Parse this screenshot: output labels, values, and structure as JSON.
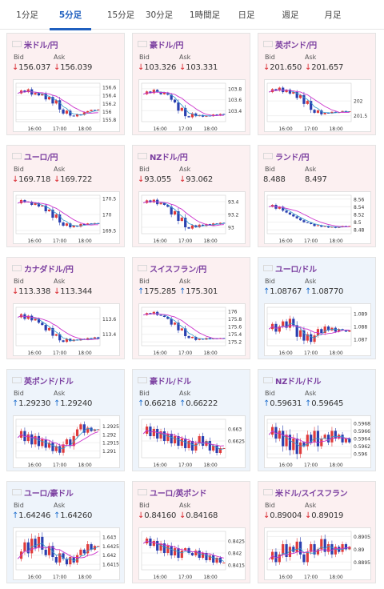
{
  "tabs": [
    {
      "label": "1分足",
      "active": false
    },
    {
      "label": "5分足",
      "active": true
    },
    {
      "label": "15分足",
      "active": false
    },
    {
      "label": "30分足",
      "active": false
    },
    {
      "label": "1時間足",
      "active": false
    },
    {
      "label": "日足",
      "active": false
    },
    {
      "label": "週足",
      "active": false
    },
    {
      "label": "月足",
      "active": false
    }
  ],
  "labels": {
    "bid": "Bid",
    "ask": "Ask"
  },
  "colors": {
    "accent": "#1f5fbf",
    "pair_name": "#7b3fa0",
    "down": "#d8232a",
    "up": "#1f6fce",
    "down_bg": "#fcf0f1",
    "up_bg": "#eef4fb",
    "bull_candle": "#e03b3b",
    "bear_candle": "#2a3fb0",
    "ma_line": "#cc33cc",
    "ma_line2": "#3399cc"
  },
  "pairs": [
    {
      "name": "米ドル/円",
      "flag": "us-flag",
      "dir": "down",
      "bid": "156.037",
      "ask": "156.039",
      "chart_data": {
        "type": "candlestick",
        "x_ticks": [
          "16:00",
          "17:00",
          "18:00"
        ],
        "y_ticks": [
          "156.6",
          "156.4",
          "156.2",
          "156",
          "155.8"
        ],
        "ylim": [
          155.75,
          156.7
        ],
        "path": [
          156.45,
          156.52,
          156.48,
          156.55,
          156.42,
          156.46,
          156.4,
          156.44,
          156.3,
          156.36,
          156.2,
          156.28,
          156.05,
          155.95,
          156.02,
          155.9,
          155.88,
          155.93,
          155.92,
          155.98,
          156.01,
          156.04,
          156.03,
          156.05
        ]
      }
    },
    {
      "name": "豪ドル/円",
      "flag": "au-flag",
      "dir": "down",
      "bid": "103.326",
      "ask": "103.331",
      "chart_data": {
        "type": "candlestick",
        "x_ticks": [
          "16:00",
          "17:00",
          "18:00"
        ],
        "y_ticks": [
          "103.8",
          "103.6",
          "103.4"
        ],
        "ylim": [
          103.2,
          103.9
        ],
        "path": [
          103.7,
          103.75,
          103.72,
          103.78,
          103.74,
          103.7,
          103.73,
          103.69,
          103.6,
          103.55,
          103.4,
          103.45,
          103.3,
          103.28,
          103.35,
          103.3,
          103.32,
          103.29,
          103.31,
          103.3,
          103.33,
          103.31,
          103.34,
          103.33
        ]
      }
    },
    {
      "name": "英ポンド/円",
      "flag": "gb-flag",
      "dir": "down",
      "bid": "201.650",
      "ask": "201.657",
      "chart_data": {
        "type": "candlestick",
        "x_ticks": [
          "16:00",
          "17:00",
          "18:00"
        ],
        "y_ticks": [
          "202",
          "201.5"
        ],
        "ylim": [
          201.3,
          202.6
        ],
        "path": [
          202.3,
          202.4,
          202.35,
          202.45,
          202.3,
          202.38,
          202.25,
          202.3,
          202.1,
          202.2,
          201.9,
          202.0,
          201.7,
          201.6,
          201.68,
          201.55,
          201.6,
          201.58,
          201.63,
          201.6,
          201.62,
          201.66,
          201.64,
          201.65
        ]
      }
    },
    {
      "name": "ユーロ/円",
      "flag": "eu-flag",
      "dir": "down",
      "bid": "169.718",
      "ask": "169.722",
      "chart_data": {
        "type": "candlestick",
        "x_ticks": [
          "16:00",
          "17:00",
          "18:00"
        ],
        "y_ticks": [
          "170.5",
          "170",
          "169.5"
        ],
        "ylim": [
          169.4,
          170.6
        ],
        "path": [
          170.35,
          170.45,
          170.38,
          170.4,
          170.3,
          170.35,
          170.25,
          170.28,
          170.1,
          170.15,
          169.9,
          170.0,
          169.75,
          169.65,
          169.72,
          169.6,
          169.65,
          169.62,
          169.7,
          169.68,
          169.72,
          169.7,
          169.73,
          169.72
        ]
      }
    },
    {
      "name": "NZドル/円",
      "flag": "nz-flag",
      "dir": "down",
      "bid": "93.055",
      "ask": "93.062",
      "chart_data": {
        "type": "candlestick",
        "x_ticks": [
          "16:00",
          "17:00",
          "18:00"
        ],
        "y_ticks": [
          "93.4",
          "93.2",
          "93"
        ],
        "ylim": [
          92.9,
          93.5
        ],
        "path": [
          93.38,
          93.42,
          93.39,
          93.43,
          93.36,
          93.38,
          93.35,
          93.32,
          93.2,
          93.25,
          93.1,
          93.15,
          93.0,
          92.98,
          93.03,
          93.0,
          93.04,
          93.02,
          93.05,
          93.03,
          93.06,
          93.05,
          93.07,
          93.06
        ]
      }
    },
    {
      "name": "ランド/円",
      "flag": "za-flag",
      "dir": "none",
      "bid": "8.488",
      "ask": "8.497",
      "chart_data": {
        "type": "candlestick",
        "x_ticks": [
          "16:00",
          "17:00",
          "18:00"
        ],
        "y_ticks": [
          "8.56",
          "8.54",
          "8.52",
          "8.5",
          "8.48"
        ],
        "ylim": [
          8.47,
          8.57
        ],
        "path": [
          8.54,
          8.545,
          8.535,
          8.54,
          8.53,
          8.525,
          8.52,
          8.515,
          8.51,
          8.505,
          8.5,
          8.498,
          8.495,
          8.49,
          8.492,
          8.488,
          8.49,
          8.486,
          8.488,
          8.485,
          8.487,
          8.49,
          8.488,
          8.49
        ]
      }
    },
    {
      "name": "カナダドル/円",
      "flag": "ca-flag",
      "dir": "down",
      "bid": "113.338",
      "ask": "113.344",
      "chart_data": {
        "type": "candlestick",
        "x_ticks": [
          "16:00",
          "17:00",
          "18:00"
        ],
        "y_ticks": [
          "113.6",
          "113.4"
        ],
        "ylim": [
          113.25,
          113.75
        ],
        "path": [
          113.62,
          113.66,
          113.6,
          113.64,
          113.58,
          113.6,
          113.55,
          113.52,
          113.45,
          113.48,
          113.38,
          113.4,
          113.32,
          113.3,
          113.34,
          113.31,
          113.33,
          113.32,
          113.34,
          113.33,
          113.35,
          113.34,
          113.36,
          113.34
        ]
      }
    },
    {
      "name": "スイスフラン/円",
      "flag": "ch-flag",
      "dir": "up",
      "bid": "175.285",
      "ask": "175.301",
      "chart_data": {
        "type": "candlestick",
        "x_ticks": [
          "16:00",
          "17:00",
          "18:00"
        ],
        "y_ticks": [
          "176",
          "175.8",
          "175.6",
          "175.4",
          "175.2"
        ],
        "ylim": [
          175.1,
          176.1
        ],
        "path": [
          175.9,
          175.95,
          175.92,
          175.98,
          175.9,
          175.88,
          175.85,
          175.8,
          175.65,
          175.7,
          175.5,
          175.55,
          175.35,
          175.3,
          175.33,
          175.25,
          175.28,
          175.26,
          175.3,
          175.27,
          175.29,
          175.28,
          175.3,
          175.29
        ]
      }
    },
    {
      "name": "ユーロ/ドル",
      "flag": "eu-us-flag",
      "dir": "up",
      "bid": "1.08767",
      "ask": "1.08770",
      "chart_data": {
        "type": "candlestick",
        "x_ticks": [
          "16:00",
          "17:00",
          "18:00"
        ],
        "y_ticks": [
          "1.089",
          "1.088",
          "1.087"
        ],
        "ylim": [
          1.0865,
          1.0895
        ],
        "path": [
          1.0878,
          1.0882,
          1.0876,
          1.088,
          1.0884,
          1.0879,
          1.0886,
          1.0881,
          1.0872,
          1.0877,
          1.0869,
          1.0874,
          1.0868,
          1.0873,
          1.0878,
          1.0875,
          1.088,
          1.0877,
          1.0879,
          1.0876,
          1.0878,
          1.0877,
          1.0876,
          1.0877
        ]
      }
    },
    {
      "name": "英ポンド/ドル",
      "flag": "gb-us-flag",
      "dir": "up",
      "bid": "1.29230",
      "ask": "1.29240",
      "chart_data": {
        "type": "candlestick",
        "x_ticks": [
          "16:00",
          "17:00",
          "18:00"
        ],
        "y_ticks": [
          "1.2925",
          "1.292",
          "1.2915",
          "1.291"
        ],
        "ylim": [
          1.2906,
          1.2929
        ],
        "path": [
          1.2918,
          1.2922,
          1.2916,
          1.292,
          1.2914,
          1.2919,
          1.2913,
          1.2917,
          1.2912,
          1.2915,
          1.291,
          1.2913,
          1.2909,
          1.2914,
          1.2917,
          1.2913,
          1.2919,
          1.2923,
          1.2926,
          1.2921,
          1.2924,
          1.2922,
          1.2923,
          1.2923
        ]
      }
    },
    {
      "name": "豪ドル/ドル",
      "flag": "au-us-flag",
      "dir": "up",
      "bid": "0.66218",
      "ask": "0.66222",
      "chart_data": {
        "type": "candlestick",
        "x_ticks": [
          "16:00",
          "17:00",
          "18:00"
        ],
        "y_ticks": [
          "0.663",
          "0.6625"
        ],
        "ylim": [
          0.6618,
          0.6634
        ],
        "path": [
          0.6628,
          0.6631,
          0.6627,
          0.663,
          0.6626,
          0.6629,
          0.6625,
          0.6628,
          0.6624,
          0.6627,
          0.6623,
          0.6626,
          0.6622,
          0.6625,
          0.6621,
          0.6624,
          0.6627,
          0.6623,
          0.6625,
          0.6621,
          0.6623,
          0.662,
          0.6622,
          0.6622
        ]
      }
    },
    {
      "name": "NZドル/ドル",
      "flag": "nz-us-flag",
      "dir": "up",
      "bid": "0.59631",
      "ask": "0.59645",
      "chart_data": {
        "type": "candlestick",
        "x_ticks": [
          "16:00",
          "17:00",
          "18:00"
        ],
        "y_ticks": [
          "0.5968",
          "0.5966",
          "0.5964",
          "0.5962",
          "0.596"
        ],
        "ylim": [
          0.5959,
          0.5969
        ],
        "path": [
          0.5965,
          0.5967,
          0.5964,
          0.5966,
          0.5962,
          0.5965,
          0.5961,
          0.5964,
          0.596,
          0.5963,
          0.5962,
          0.5965,
          0.5963,
          0.5966,
          0.5962,
          0.5964,
          0.5965,
          0.5963,
          0.5966,
          0.5964,
          0.5965,
          0.5963,
          0.5964,
          0.5963
        ]
      }
    },
    {
      "name": "ユーロ/豪ドル",
      "flag": "eu-au-flag",
      "dir": "up",
      "bid": "1.64246",
      "ask": "1.64260",
      "chart_data": {
        "type": "candlestick",
        "x_ticks": [
          "16:00",
          "17:00",
          "18:00"
        ],
        "y_ticks": [
          "1.643",
          "1.6425",
          "1.642",
          "1.6415"
        ],
        "ylim": [
          1.6412,
          1.6433
        ],
        "path": [
          1.6418,
          1.6422,
          1.6427,
          1.6421,
          1.6429,
          1.6424,
          1.643,
          1.6423,
          1.642,
          1.6425,
          1.6419,
          1.6416,
          1.6421,
          1.6418,
          1.6415,
          1.6419,
          1.6416,
          1.642,
          1.6423,
          1.6421,
          1.6426,
          1.6423,
          1.6425,
          1.6425
        ]
      }
    },
    {
      "name": "ユーロ/英ポンド",
      "flag": "eu-gb-flag",
      "dir": "down",
      "bid": "0.84160",
      "ask": "0.84168",
      "chart_data": {
        "type": "candlestick",
        "x_ticks": [
          "16:00",
          "17:00",
          "18:00"
        ],
        "y_ticks": [
          "0.8425",
          "0.842",
          "0.8415"
        ],
        "ylim": [
          0.8413,
          0.8429
        ],
        "path": [
          0.8424,
          0.8426,
          0.8423,
          0.8425,
          0.8421,
          0.8424,
          0.842,
          0.8423,
          0.8419,
          0.8422,
          0.8418,
          0.8421,
          0.8422,
          0.842,
          0.8419,
          0.8421,
          0.8418,
          0.842,
          0.8417,
          0.8419,
          0.8416,
          0.8418,
          0.8416,
          0.8416
        ]
      }
    },
    {
      "name": "米ドル/スイスフラン",
      "flag": "us-ch-flag",
      "dir": "down",
      "bid": "0.89004",
      "ask": "0.89019",
      "chart_data": {
        "type": "candlestick",
        "x_ticks": [
          "16:00",
          "17:00",
          "18:00"
        ],
        "y_ticks": [
          "0.8905",
          "0.89",
          "0.8895"
        ],
        "ylim": [
          0.8892,
          0.8907
        ],
        "path": [
          0.8896,
          0.8899,
          0.8895,
          0.8898,
          0.8902,
          0.8897,
          0.8901,
          0.8899,
          0.8903,
          0.8898,
          0.8895,
          0.8899,
          0.8902,
          0.8898,
          0.89,
          0.8904,
          0.8899,
          0.8902,
          0.8898,
          0.8901,
          0.8899,
          0.8902,
          0.89,
          0.8901
        ]
      }
    }
  ]
}
